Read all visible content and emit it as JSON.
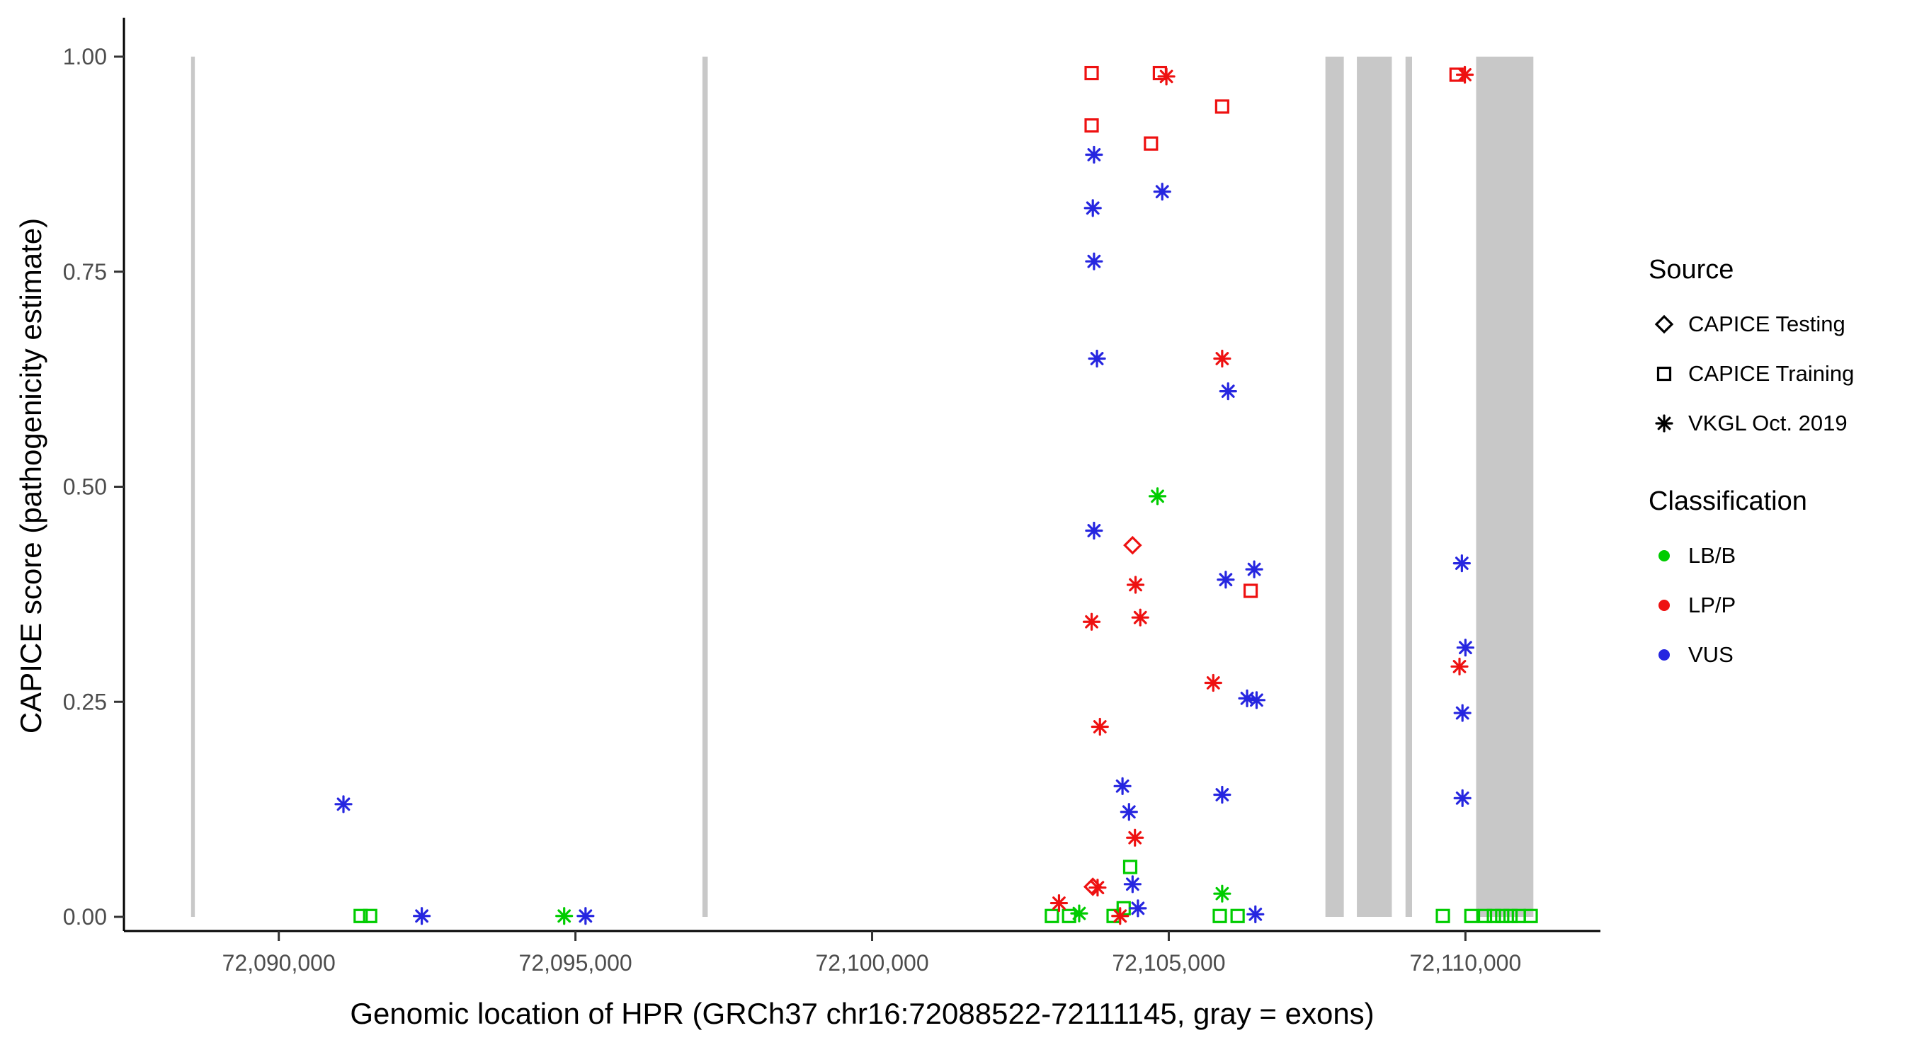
{
  "figure": {
    "background": "#FFFFFF"
  },
  "chart_data": {
    "type": "scatter",
    "title": "",
    "xlabel": "Genomic location of HPR (GRCh37 chr16:72088522-72111145, gray = exons)",
    "ylabel": "CAPICE score (pathogenicity estimate)",
    "x_domain": [
      72087390,
      72112275
    ],
    "y_domain": [
      0.0,
      1.0
    ],
    "x_ticks": [
      {
        "value": 72090000,
        "label": "72,090,000"
      },
      {
        "value": 72095000,
        "label": "72,095,000"
      },
      {
        "value": 72100000,
        "label": "72,100,000"
      },
      {
        "value": 72105000,
        "label": "72,105,000"
      },
      {
        "value": 72110000,
        "label": "72,110,000"
      }
    ],
    "y_ticks": [
      {
        "value": 0.0,
        "label": "0.00"
      },
      {
        "value": 0.25,
        "label": "0.25"
      },
      {
        "value": 0.5,
        "label": "0.50"
      },
      {
        "value": 0.75,
        "label": "0.75"
      },
      {
        "value": 1.0,
        "label": "1.00"
      }
    ],
    "exon_color": "#C8C8C8",
    "exons": [
      [
        72088522,
        72088585
      ],
      [
        72097140,
        72097230
      ],
      [
        72107640,
        72107950
      ],
      [
        72108170,
        72108760
      ],
      [
        72108990,
        72109100
      ],
      [
        72110180,
        72111145
      ]
    ],
    "colors": {
      "LB/B": "#00CC00",
      "LP/P": "#EE1111",
      "VUS": "#2626E0"
    },
    "source_shapes": {
      "CAPICE Testing": "diamond",
      "CAPICE Training": "square",
      "VKGL Oct. 2019": "asterisk"
    },
    "points": [
      {
        "x": 72103700,
        "y": 0.981,
        "s": "square",
        "c": "LP/P"
      },
      {
        "x": 72103700,
        "y": 0.92,
        "s": "square",
        "c": "LP/P"
      },
      {
        "x": 72103740,
        "y": 0.886,
        "s": "asterisk",
        "c": "VUS"
      },
      {
        "x": 72103720,
        "y": 0.824,
        "s": "asterisk",
        "c": "VUS"
      },
      {
        "x": 72103740,
        "y": 0.762,
        "s": "asterisk",
        "c": "VUS"
      },
      {
        "x": 72103790,
        "y": 0.649,
        "s": "asterisk",
        "c": "VUS"
      },
      {
        "x": 72103740,
        "y": 0.449,
        "s": "asterisk",
        "c": "VUS"
      },
      {
        "x": 72103700,
        "y": 0.343,
        "s": "asterisk",
        "c": "LP/P"
      },
      {
        "x": 72103840,
        "y": 0.221,
        "s": "asterisk",
        "c": "LP/P"
      },
      {
        "x": 72104850,
        "y": 0.981,
        "s": "square",
        "c": "LP/P"
      },
      {
        "x": 72104960,
        "y": 0.977,
        "s": "asterisk",
        "c": "LP/P"
      },
      {
        "x": 72104700,
        "y": 0.899,
        "s": "square",
        "c": "LP/P"
      },
      {
        "x": 72104890,
        "y": 0.843,
        "s": "asterisk",
        "c": "VUS"
      },
      {
        "x": 72104810,
        "y": 0.489,
        "s": "asterisk",
        "c": "LB/B"
      },
      {
        "x": 72104390,
        "y": 0.432,
        "s": "diamond",
        "c": "LP/P"
      },
      {
        "x": 72104440,
        "y": 0.386,
        "s": "asterisk",
        "c": "LP/P"
      },
      {
        "x": 72104520,
        "y": 0.348,
        "s": "asterisk",
        "c": "LP/P"
      },
      {
        "x": 72104220,
        "y": 0.152,
        "s": "asterisk",
        "c": "VUS"
      },
      {
        "x": 72104330,
        "y": 0.122,
        "s": "asterisk",
        "c": "VUS"
      },
      {
        "x": 72104430,
        "y": 0.092,
        "s": "asterisk",
        "c": "LP/P"
      },
      {
        "x": 72104390,
        "y": 0.038,
        "s": "asterisk",
        "c": "VUS"
      },
      {
        "x": 72104350,
        "y": 0.058,
        "s": "square",
        "c": "LB/B"
      },
      {
        "x": 72105900,
        "y": 0.942,
        "s": "square",
        "c": "LP/P"
      },
      {
        "x": 72105900,
        "y": 0.649,
        "s": "asterisk",
        "c": "LP/P"
      },
      {
        "x": 72106000,
        "y": 0.611,
        "s": "asterisk",
        "c": "VUS"
      },
      {
        "x": 72105960,
        "y": 0.392,
        "s": "asterisk",
        "c": "VUS"
      },
      {
        "x": 72106440,
        "y": 0.404,
        "s": "asterisk",
        "c": "VUS"
      },
      {
        "x": 72106380,
        "y": 0.379,
        "s": "square",
        "c": "LP/P"
      },
      {
        "x": 72105750,
        "y": 0.272,
        "s": "asterisk",
        "c": "LP/P"
      },
      {
        "x": 72106320,
        "y": 0.254,
        "s": "asterisk",
        "c": "VUS"
      },
      {
        "x": 72106480,
        "y": 0.252,
        "s": "asterisk",
        "c": "VUS"
      },
      {
        "x": 72105900,
        "y": 0.142,
        "s": "asterisk",
        "c": "VUS"
      },
      {
        "x": 72103030,
        "y": 0.001,
        "s": "square",
        "c": "LB/B"
      },
      {
        "x": 72103320,
        "y": 0.001,
        "s": "square",
        "c": "LB/B"
      },
      {
        "x": 72103150,
        "y": 0.016,
        "s": "asterisk",
        "c": "LP/P"
      },
      {
        "x": 72103490,
        "y": 0.004,
        "s": "asterisk",
        "c": "LB/B"
      },
      {
        "x": 72103720,
        "y": 0.035,
        "s": "diamond",
        "c": "LP/P"
      },
      {
        "x": 72103800,
        "y": 0.034,
        "s": "asterisk",
        "c": "LP/P"
      },
      {
        "x": 72104070,
        "y": 0.001,
        "s": "square",
        "c": "LB/B"
      },
      {
        "x": 72104240,
        "y": 0.01,
        "s": "square",
        "c": "LB/B"
      },
      {
        "x": 72104180,
        "y": 0.001,
        "s": "asterisk",
        "c": "LP/P"
      },
      {
        "x": 72104480,
        "y": 0.01,
        "s": "asterisk",
        "c": "VUS"
      },
      {
        "x": 72105860,
        "y": 0.001,
        "s": "square",
        "c": "LB/B"
      },
      {
        "x": 72106160,
        "y": 0.001,
        "s": "square",
        "c": "LB/B"
      },
      {
        "x": 72105900,
        "y": 0.027,
        "s": "asterisk",
        "c": "LB/B"
      },
      {
        "x": 72106460,
        "y": 0.003,
        "s": "asterisk",
        "c": "VUS"
      },
      {
        "x": 72091090,
        "y": 0.131,
        "s": "asterisk",
        "c": "VUS"
      },
      {
        "x": 72091380,
        "y": 0.001,
        "s": "square",
        "c": "LB/B"
      },
      {
        "x": 72091540,
        "y": 0.001,
        "s": "square",
        "c": "LB/B"
      },
      {
        "x": 72092410,
        "y": 0.001,
        "s": "asterisk",
        "c": "VUS"
      },
      {
        "x": 72094810,
        "y": 0.001,
        "s": "asterisk",
        "c": "LB/B"
      },
      {
        "x": 72095170,
        "y": 0.001,
        "s": "asterisk",
        "c": "VUS"
      },
      {
        "x": 72109850,
        "y": 0.979,
        "s": "square",
        "c": "LP/P"
      },
      {
        "x": 72109990,
        "y": 0.979,
        "s": "asterisk",
        "c": "LP/P"
      },
      {
        "x": 72109940,
        "y": 0.411,
        "s": "asterisk",
        "c": "VUS"
      },
      {
        "x": 72110000,
        "y": 0.313,
        "s": "asterisk",
        "c": "VUS"
      },
      {
        "x": 72109900,
        "y": 0.291,
        "s": "asterisk",
        "c": "LP/P"
      },
      {
        "x": 72109950,
        "y": 0.237,
        "s": "asterisk",
        "c": "VUS"
      },
      {
        "x": 72109950,
        "y": 0.138,
        "s": "asterisk",
        "c": "VUS"
      },
      {
        "x": 72109620,
        "y": 0.001,
        "s": "square",
        "c": "LB/B"
      },
      {
        "x": 72110100,
        "y": 0.001,
        "s": "square",
        "c": "LB/B"
      },
      {
        "x": 72110330,
        "y": 0.001,
        "s": "square",
        "c": "LB/B"
      },
      {
        "x": 72110480,
        "y": 0.001,
        "s": "square",
        "c": "LB/B"
      },
      {
        "x": 72110620,
        "y": 0.001,
        "s": "square",
        "c": "LB/B"
      },
      {
        "x": 72110760,
        "y": 0.001,
        "s": "square",
        "c": "LB/B"
      },
      {
        "x": 72110900,
        "y": 0.001,
        "s": "square",
        "c": "LB/B"
      },
      {
        "x": 72111100,
        "y": 0.001,
        "s": "square",
        "c": "LB/B"
      }
    ],
    "legend_position": "right",
    "grid": false
  },
  "legend": {
    "sections": [
      {
        "title": "Source",
        "items": [
          {
            "label": "CAPICE Testing",
            "shape": "diamond",
            "color": "#000000"
          },
          {
            "label": "CAPICE Training",
            "shape": "square",
            "color": "#000000"
          },
          {
            "label": "VKGL Oct. 2019",
            "shape": "asterisk",
            "color": "#000000"
          }
        ]
      },
      {
        "title": "Classification",
        "items": [
          {
            "label": "LB/B",
            "shape": "circle",
            "color": "#00CC00"
          },
          {
            "label": "LP/P",
            "shape": "circle",
            "color": "#EE1111"
          },
          {
            "label": "VUS",
            "shape": "circle",
            "color": "#2626E0"
          }
        ]
      }
    ]
  }
}
